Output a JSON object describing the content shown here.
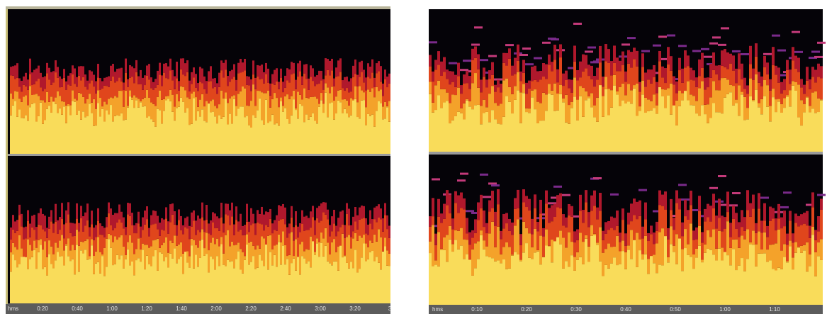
{
  "left_panel": {
    "timeline": {
      "labels": [
        "hms",
        "0:20",
        "0:40",
        "1:00",
        "1:20",
        "1:40",
        "2:00",
        "2:20",
        "2:40",
        "3:00",
        "3:20",
        "3"
      ]
    }
  },
  "right_panel": {
    "timeline": {
      "labels": [
        "hms",
        "0:10",
        "0:20",
        "0:30",
        "0:40",
        "0:50",
        "1:00",
        "1:10"
      ]
    }
  }
}
